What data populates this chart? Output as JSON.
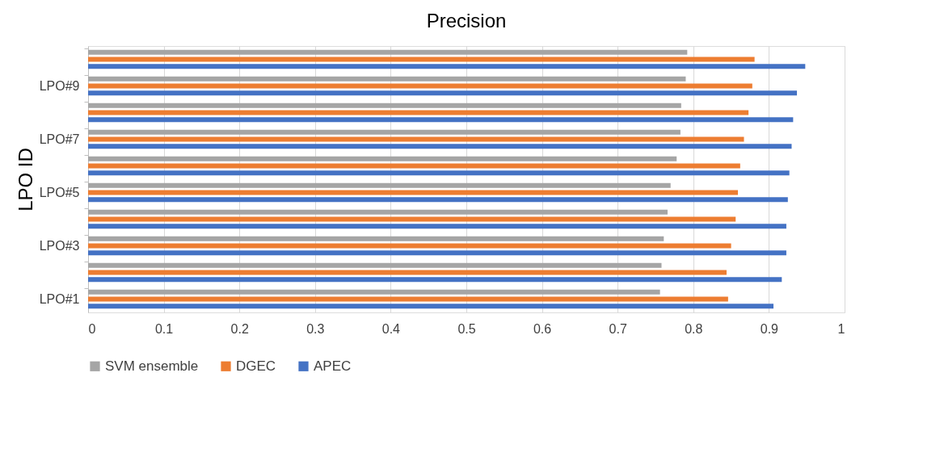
{
  "chart_data": {
    "type": "bar",
    "orientation": "horizontal",
    "title": "Precision",
    "ylabel": "LPO ID",
    "categories": [
      null,
      "LPO#9",
      null,
      "LPO#7",
      null,
      "LPO#5",
      null,
      "LPO#3",
      null,
      "LPO#1"
    ],
    "series": [
      {
        "name": "SVM ensemble",
        "color": "#a5a5a5",
        "values": [
          0.792,
          0.79,
          0.784,
          0.783,
          0.778,
          0.77,
          0.766,
          0.761,
          0.758,
          0.756
        ]
      },
      {
        "name": "DGEC",
        "color": "#ed7d31",
        "values": [
          0.881,
          0.878,
          0.873,
          0.867,
          0.862,
          0.859,
          0.856,
          0.85,
          0.844,
          0.846
        ]
      },
      {
        "name": "APEC",
        "color": "#4472c4",
        "values": [
          0.948,
          0.937,
          0.932,
          0.93,
          0.927,
          0.925,
          0.923,
          0.923,
          0.917,
          0.906
        ]
      }
    ],
    "xlim": [
      0,
      1
    ],
    "xticks": [
      0,
      0.1,
      0.2,
      0.3,
      0.4,
      0.5,
      0.6,
      0.7,
      0.8,
      0.9,
      1
    ],
    "grid": "x",
    "legend": "bottom"
  }
}
